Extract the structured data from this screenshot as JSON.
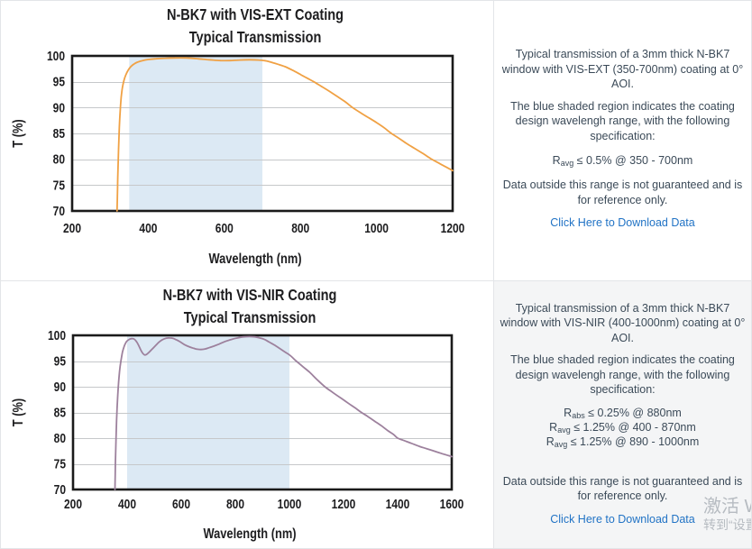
{
  "chart_data": [
    {
      "type": "line",
      "title_line1": "N-BK7 with VIS-EXT Coating",
      "title_line2": "Typical Transmission",
      "xlabel": "Wavelength (nm)",
      "ylabel": "T (%)",
      "xlim": [
        200,
        1200
      ],
      "ylim": [
        70,
        100
      ],
      "xticks": [
        200,
        400,
        600,
        800,
        1000,
        1200
      ],
      "yticks": [
        100,
        95,
        90,
        85,
        80,
        75,
        70
      ],
      "shaded_region": {
        "x0": 350,
        "x1": 700,
        "color": "#dce9f4"
      },
      "grid_color": "#c6c8ca",
      "line_color": "#f0a144",
      "series": [
        {
          "name": "transmission",
          "x": [
            318,
            319,
            320,
            322,
            324,
            326,
            329,
            332,
            336,
            341,
            347,
            354,
            362,
            372,
            385,
            400,
            420,
            445,
            470,
            500,
            530,
            560,
            590,
            615,
            640,
            665,
            690,
            705,
            720,
            740,
            760,
            780,
            800,
            820,
            835,
            855,
            875,
            900,
            920,
            937,
            960,
            980,
            1000,
            1020,
            1039,
            1060,
            1080,
            1100,
            1120,
            1143,
            1160,
            1180,
            1200
          ],
          "y": [
            70,
            73,
            76.5,
            82,
            86,
            89,
            92,
            93.8,
            95.2,
            96.3,
            97.2,
            97.9,
            98.4,
            98.8,
            99.1,
            99.3,
            99.45,
            99.55,
            99.6,
            99.6,
            99.45,
            99.25,
            99.1,
            99.1,
            99.2,
            99.25,
            99.2,
            99.1,
            98.85,
            98.4,
            97.9,
            97.2,
            96.4,
            95.6,
            95,
            94.1,
            93.2,
            92,
            91,
            90,
            88.9,
            88,
            87.1,
            86.1,
            85,
            84,
            83,
            82.1,
            81.2,
            80.1,
            79.4,
            78.6,
            77.8
          ]
        }
      ]
    },
    {
      "type": "line",
      "title_line1": "N-BK7 with VIS-NIR Coating",
      "title_line2": "Typical Transmission",
      "xlabel": "Wavelength (nm)",
      "ylabel": "T (%)",
      "xlim": [
        200,
        1600
      ],
      "ylim": [
        70,
        100
      ],
      "xticks": [
        200,
        400,
        600,
        800,
        1000,
        1200,
        1400,
        1600
      ],
      "yticks": [
        100,
        95,
        90,
        85,
        80,
        75,
        70
      ],
      "shaded_region": {
        "x0": 400,
        "x1": 1000,
        "color": "#dce9f4"
      },
      "grid_color": "#c6c8ca",
      "line_color": "#9d819d",
      "series": [
        {
          "name": "transmission",
          "x": [
            355,
            356,
            357,
            359,
            361,
            364,
            368,
            372,
            377,
            383,
            390,
            398,
            407,
            416,
            425,
            433,
            441,
            450,
            458,
            465,
            472,
            481,
            492,
            505,
            518,
            532,
            545,
            557,
            570,
            583,
            597,
            612,
            628,
            645,
            660,
            673,
            688,
            703,
            720,
            740,
            762,
            785,
            808,
            830,
            852,
            872,
            890,
            908,
            925,
            945,
            965,
            985,
            1000,
            1013,
            1025,
            1050,
            1075,
            1100,
            1131,
            1160,
            1190,
            1220,
            1245,
            1266,
            1290,
            1315,
            1340,
            1365,
            1385,
            1400,
            1420,
            1450,
            1480,
            1510,
            1545,
            1575,
            1600
          ],
          "y": [
            70,
            73,
            76,
            80,
            83.5,
            87,
            90.5,
            93,
            95,
            96.8,
            98,
            98.8,
            99.2,
            99.35,
            99.3,
            98.9,
            98.2,
            97.2,
            96.5,
            96.2,
            96.3,
            96.7,
            97.3,
            98,
            98.7,
            99.2,
            99.45,
            99.5,
            99.4,
            99.1,
            98.7,
            98.2,
            97.8,
            97.5,
            97.3,
            97.25,
            97.35,
            97.6,
            97.9,
            98.3,
            98.8,
            99.2,
            99.5,
            99.7,
            99.75,
            99.7,
            99.5,
            99.2,
            98.7,
            98.1,
            97.4,
            96.7,
            96.2,
            95.6,
            95,
            93.9,
            92.8,
            91.5,
            90,
            88.9,
            87.8,
            86.7,
            85.8,
            85,
            84.2,
            83.3,
            82.4,
            81.4,
            80.7,
            80,
            79.6,
            79,
            78.4,
            77.9,
            77.3,
            76.8,
            76.4
          ]
        }
      ]
    }
  ],
  "panels": [
    {
      "description": "Typical transmission of a 3mm thick N-BK7 window with VIS-EXT (350-700nm) coating at 0° AOI.",
      "note": "The blue shaded region indicates the coating design wavelengh range, with the following specification:",
      "specs": [
        {
          "base": "R",
          "sub": "avg",
          "rest": " ≤ 0.5% @ 350 - 700nm"
        }
      ],
      "disclaimer": "Data outside this range is not guaranteed and is for reference only.",
      "link": "Click Here to Download Data"
    },
    {
      "description": "Typical transmission of a 3mm thick N-BK7 window with VIS-NIR (400-1000nm) coating at 0° AOI.",
      "note": "The blue shaded region indicates the coating design wavelengh range, with the following specification:",
      "specs": [
        {
          "base": "R",
          "sub": "abs",
          "rest": " ≤ 0.25% @ 880nm"
        },
        {
          "base": "R",
          "sub": "avg",
          "rest": " ≤ 1.25% @ 400 - 870nm"
        },
        {
          "base": "R",
          "sub": "avg",
          "rest": " ≤ 1.25% @ 890 - 1000nm"
        }
      ],
      "disclaimer": "Data outside this range is not guaranteed and is for reference only.",
      "link": "Click Here to Download Data"
    }
  ],
  "watermark": {
    "line1": "激活 W",
    "line2": "转到“设置"
  },
  "colors": {
    "panel_bg_bottom": "#f4f5f6",
    "text": "#3b4a58",
    "link": "#2173c5",
    "divider": "#e3e5e8"
  }
}
